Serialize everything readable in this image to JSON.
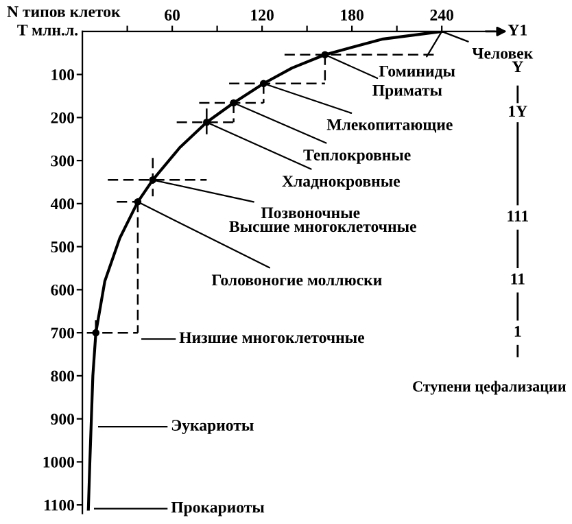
{
  "chart_data": {
    "type": "line",
    "xlabel": "N типов клеток",
    "ylabel": "T млн.л.",
    "xlim": [
      0,
      275
    ],
    "xticks": [
      {
        "value": 30,
        "label": null
      },
      60,
      {
        "value": 90,
        "label": null
      },
      120,
      {
        "value": 150,
        "label": null
      },
      180,
      {
        "value": 210,
        "label": null
      },
      240
    ],
    "ylim": [
      1120,
      0
    ],
    "yticks": [
      100,
      200,
      300,
      400,
      500,
      600,
      700,
      800,
      900,
      1000,
      1100
    ],
    "grid": false,
    "legend": false,
    "series": [
      {
        "color": "#000000",
        "line_style": "solid",
        "marker": "none",
        "x": [
          240,
          200,
          162,
          140,
          121,
          101,
          83,
          65,
          47,
          37,
          25,
          15,
          9,
          7,
          6,
          5,
          4
        ],
        "values": [
          0,
          18,
          54,
          85,
          121,
          166,
          211,
          270,
          345,
          396,
          480,
          580,
          700,
          800,
          900,
          1000,
          1110
        ]
      },
      {
        "type": "scatter",
        "color": "#000000",
        "marker": "circle",
        "line_style": "dashed",
        "x": [
          162,
          121,
          101,
          83,
          47,
          37,
          9
        ],
        "values": [
          54,
          121,
          166,
          211,
          345,
          396,
          700
        ],
        "xerrors": [
          [
            135,
            237
          ],
          [
            98,
            162
          ],
          [
            78,
            121
          ],
          [
            63,
            101
          ],
          [
            17,
            83
          ],
          [
            23,
            37
          ],
          [
            3,
            37
          ]
        ],
        "errors": [
          [
            54,
            121
          ],
          [
            121,
            166
          ],
          [
            166,
            211
          ],
          [
            179,
            246
          ],
          [
            294,
            383
          ],
          [
            396,
            700
          ],
          [
            671,
            700
          ]
        ]
      }
    ],
    "annotations": [
      {
        "text": "Человек",
        "x": 240,
        "y": 0
      },
      {
        "text": "Гоминиды",
        "x": 240,
        "y": 0
      },
      {
        "text": "Приматы",
        "x": 162,
        "y": 54
      },
      {
        "text": "Млекопитающие",
        "x": 121,
        "y": 121
      },
      {
        "text": "Теплокровные",
        "x": 101,
        "y": 166
      },
      {
        "text": "Хладнокровные",
        "x": 83,
        "y": 211
      },
      {
        "text": "Позвоночные",
        "x": 47,
        "y": 345
      },
      {
        "text": "Высшие многоклеточные",
        "x": 47,
        "y": 345
      },
      {
        "text": "Головоногие моллюски",
        "x": 37,
        "y": 396
      },
      "Низшие многоклеточные",
      "Эукариоты",
      "Прокариоты",
      "Y1",
      "Y",
      "1Y",
      "111",
      "11",
      "1",
      "Ступени цефализации"
    ]
  }
}
